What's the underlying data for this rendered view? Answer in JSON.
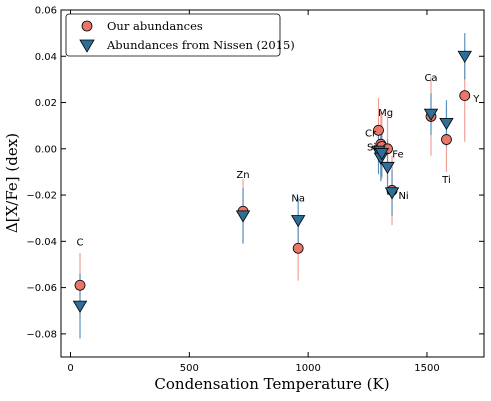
{
  "chart_data": {
    "type": "scatter",
    "xlabel": "Condensation Temperature (K)",
    "ylabel": "Δ[X/Fe] (dex)",
    "xlim": [
      -40,
      1740
    ],
    "ylim": [
      -0.09,
      0.06
    ],
    "x_ticks": [
      0,
      500,
      1000,
      1500
    ],
    "y_ticks": [
      -0.08,
      -0.06,
      -0.04,
      -0.02,
      0.0,
      0.02,
      0.04,
      0.06
    ],
    "x_tick_labels": [
      "0",
      "500",
      "1000",
      "1500"
    ],
    "y_tick_labels": [
      "−0.08",
      "−0.06",
      "−0.04",
      "−0.02",
      "0.00",
      "0.02",
      "0.04",
      "0.06"
    ],
    "grid": false,
    "legend_position": "top-left",
    "series": [
      {
        "name": "Our abundances",
        "marker": "circle",
        "color": "#e8776a",
        "points": [
          {
            "element": "C",
            "x": 40,
            "y": -0.059,
            "err": 0.014
          },
          {
            "element": "Zn",
            "x": 726,
            "y": -0.027,
            "err": 0.014
          },
          {
            "element": "Na",
            "x": 958,
            "y": -0.043,
            "err": 0.014
          },
          {
            "element": "Cr",
            "x": 1296,
            "y": 0.008,
            "err": 0.014
          },
          {
            "element": "Mg",
            "x": 1306,
            "y": 0.002,
            "err": 0.014
          },
          {
            "element": "Si",
            "x": 1310,
            "y": 0.001,
            "err": 0.014
          },
          {
            "element": "Fe",
            "x": 1334,
            "y": 0.0,
            "err": 0.014
          },
          {
            "element": "Ni",
            "x": 1353,
            "y": -0.018,
            "err": 0.015
          },
          {
            "element": "Ca",
            "x": 1517,
            "y": 0.014,
            "err": 0.017
          },
          {
            "element": "Ti",
            "x": 1582,
            "y": 0.004,
            "err": 0.014
          },
          {
            "element": "Y",
            "x": 1659,
            "y": 0.023,
            "err": 0.02
          }
        ]
      },
      {
        "name": "Abundances from Nissen (2015)",
        "marker": "triangle-down",
        "color": "#2e6f99",
        "points": [
          {
            "element": "C",
            "x": 40,
            "y": -0.068,
            "err": 0.014
          },
          {
            "element": "Zn",
            "x": 726,
            "y": -0.029,
            "err": 0.012
          },
          {
            "element": "Na",
            "x": 958,
            "y": -0.031,
            "err": 0.01
          },
          {
            "element": "Cr",
            "x": 1296,
            "y": -0.001,
            "err": 0.01
          },
          {
            "element": "Mg",
            "x": 1306,
            "y": -0.004,
            "err": 0.01
          },
          {
            "element": "Si",
            "x": 1310,
            "y": -0.002,
            "err": 0.01
          },
          {
            "element": "Fe",
            "x": 1334,
            "y": -0.008,
            "err": 0.012
          },
          {
            "element": "Ni",
            "x": 1353,
            "y": -0.019,
            "err": 0.01
          },
          {
            "element": "Ca",
            "x": 1517,
            "y": 0.015,
            "err": 0.009
          },
          {
            "element": "Ti",
            "x": 1582,
            "y": 0.011,
            "err": 0.01
          },
          {
            "element": "Y",
            "x": 1659,
            "y": 0.04,
            "err": 0.01
          }
        ]
      }
    ],
    "annotations": [
      {
        "text": "C",
        "x": 40,
        "y": -0.04,
        "anchor": "middle"
      },
      {
        "text": "Zn",
        "x": 726,
        "y": -0.011,
        "anchor": "middle"
      },
      {
        "text": "Na",
        "x": 958,
        "y": -0.021,
        "anchor": "middle"
      },
      {
        "text": "Cr",
        "x": 1286,
        "y": 0.007,
        "anchor": "end"
      },
      {
        "text": "Mg",
        "x": 1326,
        "y": 0.016,
        "anchor": "middle"
      },
      {
        "text": "Si",
        "x": 1286,
        "y": 0.001,
        "anchor": "end"
      },
      {
        "text": "Fe",
        "x": 1354,
        "y": -0.002,
        "anchor": "start"
      },
      {
        "text": "Ni",
        "x": 1380,
        "y": -0.02,
        "anchor": "start"
      },
      {
        "text": "Ca",
        "x": 1517,
        "y": 0.031,
        "anchor": "middle"
      },
      {
        "text": "Ti",
        "x": 1582,
        "y": -0.013,
        "anchor": "middle"
      },
      {
        "text": "Y",
        "x": 1695,
        "y": 0.022,
        "anchor": "start"
      }
    ]
  }
}
